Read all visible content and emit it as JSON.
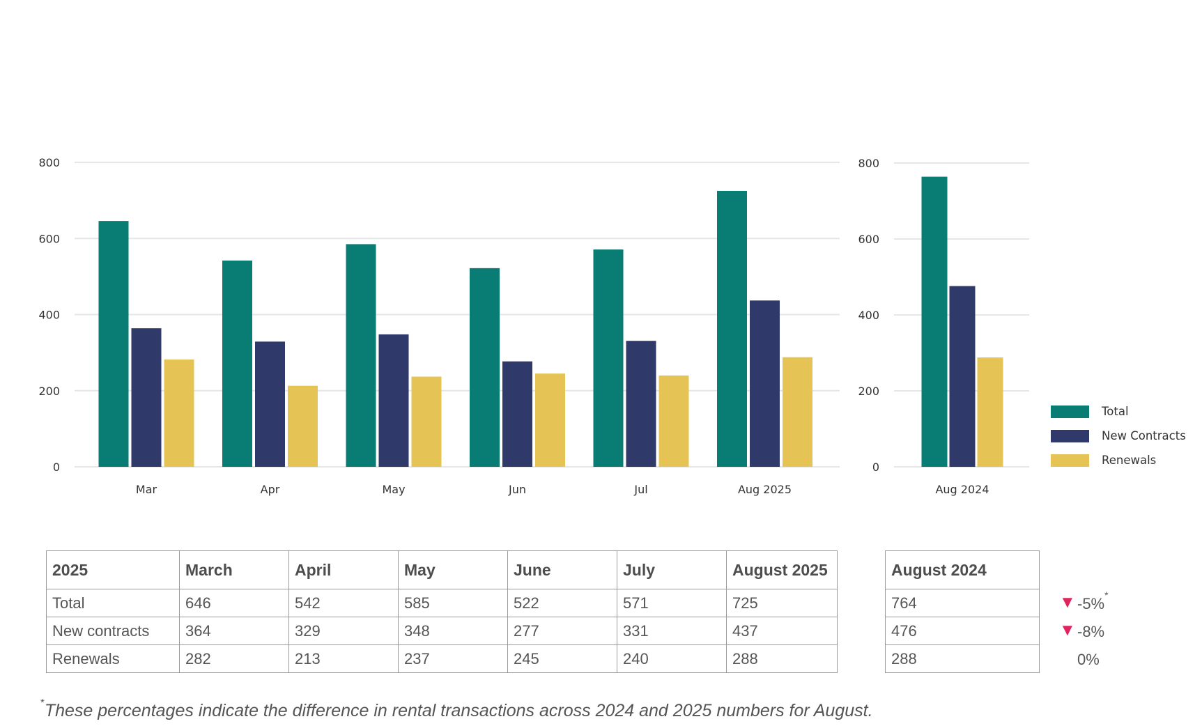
{
  "chart_data": [
    {
      "type": "bar",
      "categories": [
        "Mar",
        "Apr",
        "May",
        "Jun",
        "Jul",
        "Aug 2025"
      ],
      "series": [
        {
          "name": "Total",
          "color": "#097d74",
          "values": [
            646,
            542,
            585,
            522,
            571,
            725
          ]
        },
        {
          "name": "New Contracts",
          "color": "#303a6a",
          "values": [
            364,
            329,
            348,
            277,
            331,
            437
          ]
        },
        {
          "name": "Renewals",
          "color": "#e5c355",
          "values": [
            282,
            213,
            237,
            245,
            240,
            288
          ]
        }
      ],
      "ylim": [
        0,
        800
      ],
      "yticks": [
        0,
        200,
        400,
        600,
        800
      ],
      "grid": true
    },
    {
      "type": "bar",
      "categories": [
        "Aug 2024"
      ],
      "series": [
        {
          "name": "Total",
          "color": "#097d74",
          "values": [
            764
          ]
        },
        {
          "name": "New Contracts",
          "color": "#303a6a",
          "values": [
            476
          ]
        },
        {
          "name": "Renewals",
          "color": "#e5c355",
          "values": [
            288
          ]
        }
      ],
      "ylim": [
        0,
        800
      ],
      "yticks": [
        0,
        200,
        400,
        600,
        800
      ],
      "grid": true,
      "legend": "right"
    }
  ],
  "legend": [
    {
      "label": "Total",
      "color": "#097d74"
    },
    {
      "label": "New Contracts",
      "color": "#303a6a"
    },
    {
      "label": "Renewals",
      "color": "#e5c355"
    }
  ],
  "table_main": {
    "headers": [
      "2025",
      "March",
      "April",
      "May",
      "June",
      "July",
      "August 2025"
    ],
    "rows": [
      [
        "Total",
        "646",
        "542",
        "585",
        "522",
        "571",
        "725"
      ],
      [
        "New contracts",
        "364",
        "329",
        "348",
        "277",
        "331",
        "437"
      ],
      [
        "Renewals",
        "282",
        "213",
        "237",
        "245",
        "240",
        "288"
      ]
    ]
  },
  "table_side": {
    "header": "August 2024",
    "rows": [
      "764",
      "476",
      "288"
    ]
  },
  "changes": [
    {
      "arrow": "▼",
      "value": "-5%",
      "star": "*"
    },
    {
      "arrow": "▼",
      "value": "-8%",
      "star": ""
    },
    {
      "arrow": "",
      "value": "0%",
      "star": ""
    }
  ],
  "footnote": {
    "star": "*",
    "text": "These percentages indicate the difference in rental transactions across 2024 and 2025 numbers for August."
  }
}
